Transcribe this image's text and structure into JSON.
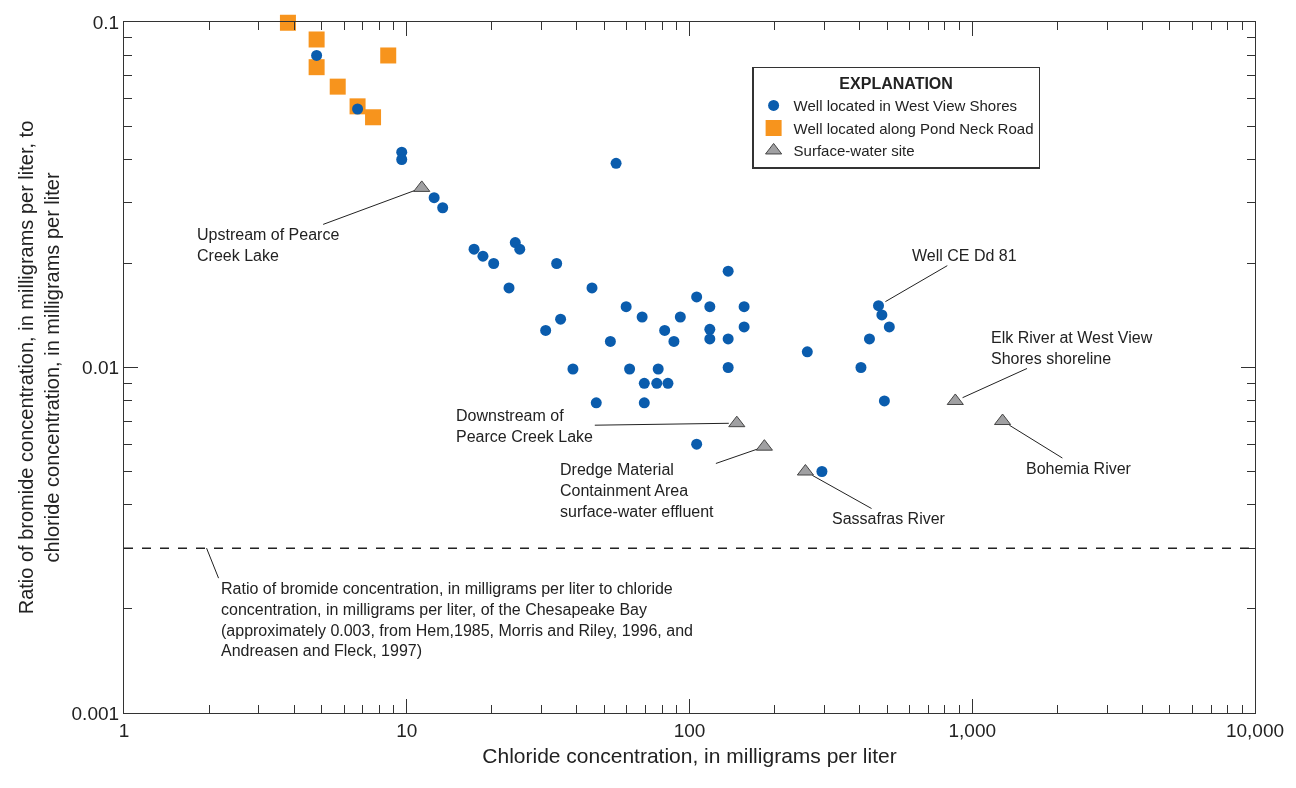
{
  "chart_data": {
    "type": "scatter",
    "xlabel": "Chloride concentration, in milligrams per liter",
    "ylabel": "Ratio of bromide concentration, in milligrams per liter, to\nchloride concentration, in milligrams per liter",
    "legend_title": "EXPLANATION",
    "log": "xy",
    "legend": "top right",
    "xlim": [
      1,
      10000
    ],
    "xticks": [
      1,
      10,
      100,
      {
        "value": 1000,
        "label": "1,000"
      },
      {
        "value": 10000,
        "label": "10,000"
      }
    ],
    "ylim": [
      0.001,
      0.1
    ],
    "yticks": [
      0.001,
      0.01,
      0.1
    ],
    "series": [
      {
        "name": "Well located in West View Shores",
        "color": "#0a5cad",
        "marker": "circle",
        "x": [
          4.8,
          6.7,
          9.6,
          9.6,
          55,
          12.5,
          13.4,
          17.3,
          18.6,
          20.3,
          24.2,
          25.1,
          33.9,
          23.0,
          45.2,
          59.7,
          68.0,
          106,
          137,
          118,
          156,
          92.8,
          81.7,
          88.1,
          118,
          118,
          156,
          137,
          261,
          35.0,
          31.0,
          52.5,
          38.7,
          61.4,
          77.5,
          69.2,
          76.6,
          83.9,
          46.8,
          69.2,
          137,
          106,
          404,
          466,
          479,
          509,
          433,
          489,
          294
        ],
        "values": [
          0.08,
          0.056,
          0.042,
          0.04,
          0.039,
          0.031,
          0.029,
          0.022,
          0.021,
          0.02,
          0.023,
          0.022,
          0.02,
          0.017,
          0.017,
          0.015,
          0.014,
          0.016,
          0.019,
          0.015,
          0.015,
          0.014,
          0.0128,
          0.0119,
          0.0129,
          0.0121,
          0.0131,
          0.0121,
          0.0111,
          0.0138,
          0.0128,
          0.0119,
          0.0099,
          0.0099,
          0.0099,
          0.009,
          0.009,
          0.009,
          0.0079,
          0.0079,
          0.01,
          0.006,
          0.01,
          0.0151,
          0.0142,
          0.0131,
          0.0121,
          0.008,
          0.005
        ]
      },
      {
        "name": "Well located along Pond Neck Road",
        "color": "#f7941d",
        "marker": "square",
        "x": [
          3.8,
          4.8,
          4.8,
          5.7,
          6.7,
          7.6,
          8.6
        ],
        "values": [
          0.0995,
          0.089,
          0.074,
          0.065,
          0.057,
          0.053,
          0.08
        ]
      },
      {
        "name": "Surface-water site",
        "color": "#a0a0a2",
        "marker": "triangle",
        "x": [
          11.3,
          147,
          184,
          257,
          871,
          1280
        ],
        "values": [
          0.0331,
          0.0069,
          0.0059,
          0.005,
          0.008,
          0.007
        ]
      }
    ],
    "ref_lines": [
      {
        "axis": "y",
        "value": 0.003,
        "line_style": "dashed",
        "color": "#222222",
        "label": "Ratio of bromide concentration, in milligrams per liter to chloride\nconcentration, in milligrams per liter, of the Chesapeake Bay\n(approximately 0.003, from Hem,1985, Morris and Riley, 1996, and\nAndreasen and Fleck, 1997)"
      }
    ],
    "annotations": [
      {
        "text": "Upstream of Pearce\nCreek Lake",
        "x": 11.3,
        "y": 0.0331
      },
      {
        "text": "Downstream of\nPearce Creek Lake",
        "x": 147,
        "y": 0.0069
      },
      {
        "text": "Dredge Material\nContainment Area\nsurface-water effluent",
        "x": 184,
        "y": 0.0059
      },
      {
        "text": "Sassafras River",
        "x": 257,
        "y": 0.005
      },
      {
        "text": "Elk River at West View\nShores shoreline",
        "x": 871,
        "y": 0.008
      },
      {
        "text": "Bohemia River",
        "x": 1280,
        "y": 0.007
      },
      {
        "text": "Well CE Dd 81",
        "x": 466,
        "y": 0.0151
      }
    ]
  }
}
